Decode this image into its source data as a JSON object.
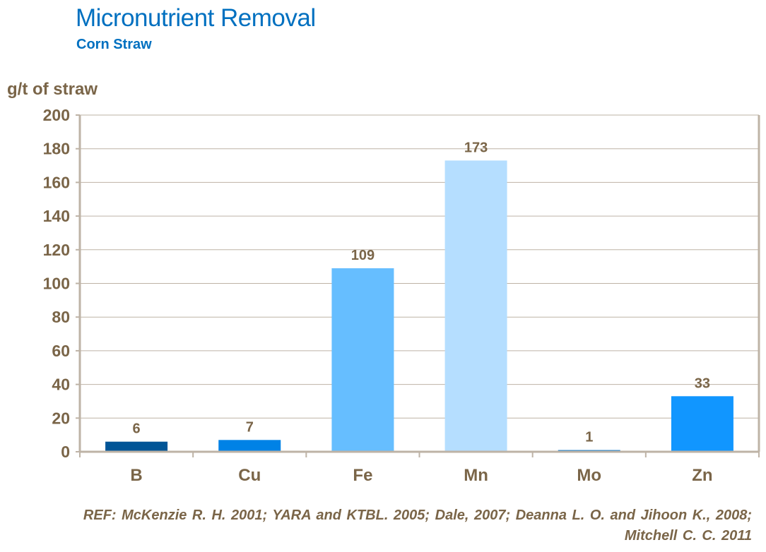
{
  "chart_data": {
    "type": "bar",
    "title": "Micronutrient Removal",
    "subtitle": "Corn Straw",
    "xlabel": "",
    "ylabel": "g/t of straw",
    "categories": [
      "B",
      "Cu",
      "Fe",
      "Mn",
      "Mo",
      "Zn"
    ],
    "values": [
      6,
      7,
      109,
      173,
      1,
      33
    ],
    "colors": [
      "#005597",
      "#0082E6",
      "#66BEFF",
      "#B5DEFF",
      "#0070C8",
      "#1196FF"
    ],
    "ylim": [
      0,
      200
    ],
    "yticks": [
      0,
      20,
      40,
      60,
      80,
      100,
      120,
      140,
      160,
      180,
      200
    ],
    "grid": true,
    "data_labels": true
  },
  "reference": "REF: McKenzie R. H. 2001; YARA  and KTBL. 2005; Dale, 2007; Deanna L. O. and Jihoon K.,  2008; Mitchell C. C. 2011"
}
